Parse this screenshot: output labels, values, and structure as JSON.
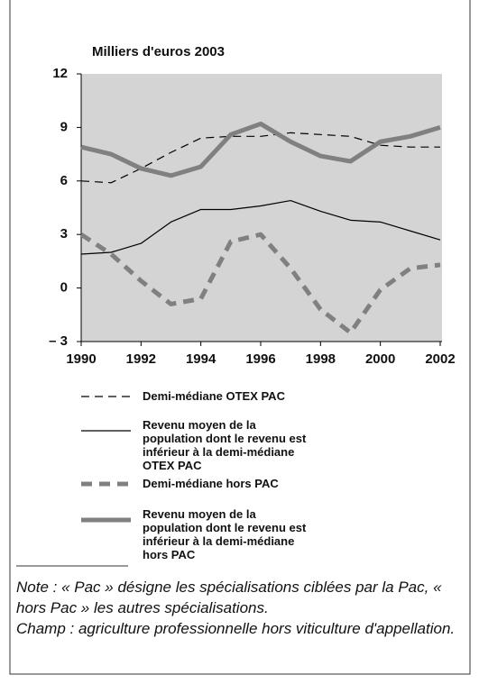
{
  "chart_data": {
    "type": "line",
    "y_label": "Milliers d'euros 2003",
    "x": [
      1990,
      1991,
      1992,
      1993,
      1994,
      1995,
      1996,
      1997,
      1998,
      1999,
      2000,
      2001,
      2002
    ],
    "xlim": [
      1990,
      2002
    ],
    "xticks": [
      1990,
      1992,
      1994,
      1996,
      1998,
      2000,
      2002
    ],
    "ylim": [
      -3,
      12
    ],
    "yticks": [
      {
        "value": -3,
        "label": "– 3"
      },
      0,
      3,
      6,
      9,
      12
    ],
    "series": [
      {
        "name": "Demi-médiane OTEX PAC",
        "color": "#000000",
        "style": "thin-dashed",
        "values": [
          6.0,
          5.9,
          6.7,
          7.6,
          8.4,
          8.5,
          8.5,
          8.7,
          8.6,
          8.5,
          8.0,
          7.9,
          7.9
        ]
      },
      {
        "name": "Revenu moyen de la population dont le revenu est inférieur à la demi-médiane OTEX PAC",
        "color": "#000000",
        "style": "thin-solid",
        "values": [
          1.9,
          2.0,
          2.5,
          3.7,
          4.4,
          4.4,
          4.6,
          4.9,
          4.3,
          3.8,
          3.7,
          3.2,
          2.7
        ]
      },
      {
        "name": "Demi-médiane hors PAC",
        "color": "#808080",
        "style": "thick-dashed",
        "values": [
          3.0,
          1.9,
          0.4,
          -0.9,
          -0.6,
          2.6,
          3.0,
          1.1,
          -1.2,
          -2.5,
          -0.1,
          1.1,
          1.3
        ]
      },
      {
        "name": "Revenu moyen de la population dont le revenu est inférieur à la demi-médiane hors PAC",
        "color": "#808080",
        "style": "thick-solid",
        "values": [
          7.9,
          7.5,
          6.7,
          6.3,
          6.8,
          8.6,
          9.2,
          8.2,
          7.4,
          7.1,
          8.2,
          8.5,
          9.0
        ]
      }
    ],
    "notes": [
      "Note : « Pac » désigne les spécialisations ciblées par la Pac, « hors Pac » les autres spécialisations.",
      "Champ : agriculture professionnelle hors viticulture d'appellation."
    ]
  }
}
